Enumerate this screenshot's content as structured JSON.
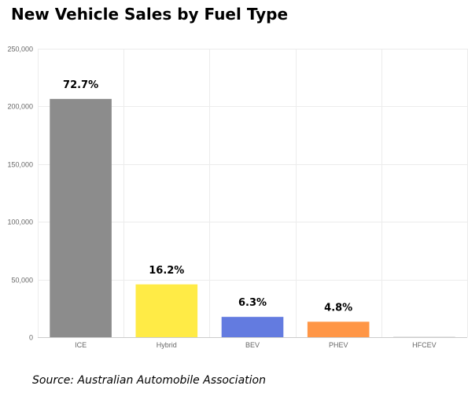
{
  "title": "New Vehicle Sales by Fuel Type",
  "source": "Source: Australian Automobile Association",
  "chart_data": {
    "type": "bar",
    "title": "New Vehicle Sales by Fuel Type",
    "categories": [
      "ICE",
      "Hybrid",
      "BEV",
      "PHEV",
      "HFCEV"
    ],
    "values": [
      206500,
      45800,
      17600,
      13400,
      300
    ],
    "data_labels": [
      "72.7%",
      "16.2%",
      "6.3%",
      "4.8%",
      ""
    ],
    "colors": [
      "#8c8c8c",
      "#ffeb46",
      "#637be0",
      "#ff9646",
      "#c0c0c0"
    ],
    "ylim": [
      0,
      250000
    ],
    "yticks": [
      0,
      50000,
      100000,
      150000,
      200000,
      250000
    ],
    "ytick_labels": [
      "0",
      "50,000",
      "100,000",
      "150,000",
      "200,000",
      "250,000"
    ],
    "xlabel": "",
    "ylabel": "",
    "grid": true,
    "legend": "none"
  }
}
